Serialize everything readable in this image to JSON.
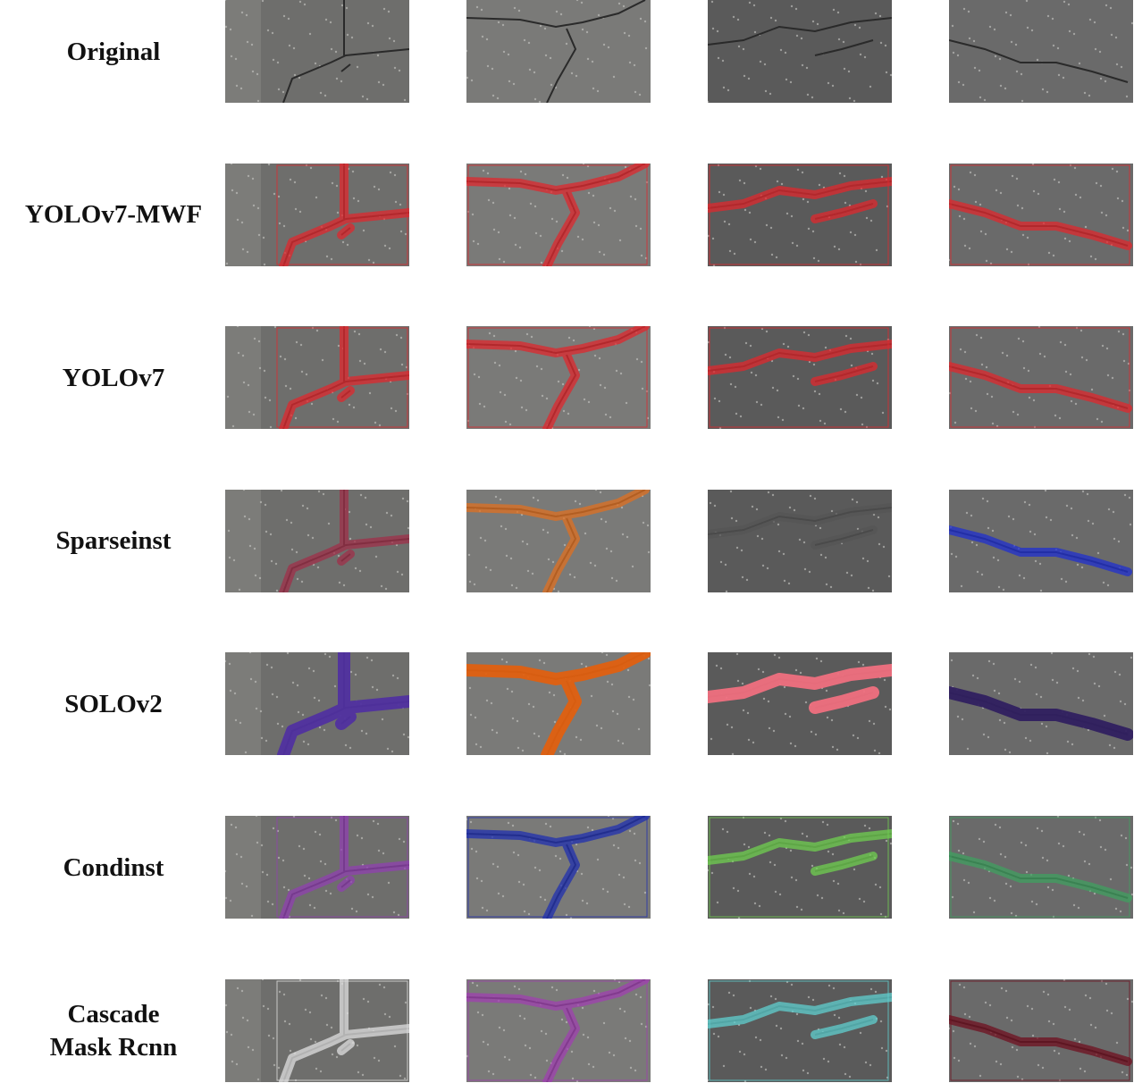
{
  "rows": [
    {
      "label": [
        "Original"
      ]
    },
    {
      "label": [
        "YOLOv7-MWF"
      ]
    },
    {
      "label": [
        "YOLOv7"
      ]
    },
    {
      "label": [
        "Sparseinst"
      ]
    },
    {
      "label": [
        "SOLOv2"
      ]
    },
    {
      "label": [
        "Condinst"
      ]
    },
    {
      "label": [
        "Cascade",
        "Mask Rcnn"
      ]
    }
  ]
}
